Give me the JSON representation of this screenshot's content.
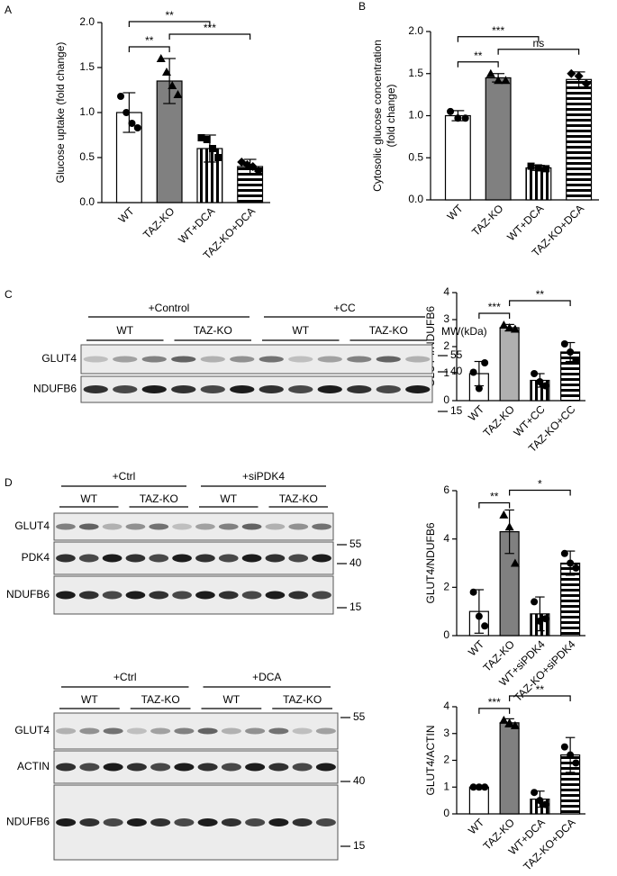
{
  "panel_labels": [
    "A",
    "B",
    "C",
    "D"
  ],
  "chart_data": [
    {
      "type": "bar",
      "ylabel": "Glucose uptake (fold change)",
      "categories": [
        "WT",
        "TAZ-KO",
        "WT+DCA",
        "TAZ-KO+DCA"
      ],
      "values": [
        1.0,
        1.35,
        0.6,
        0.4
      ],
      "errors": [
        0.22,
        0.25,
        0.15,
        0.08
      ],
      "points": [
        [
          1.18,
          1.0,
          0.88,
          0.83
        ],
        [
          1.6,
          1.45,
          1.3,
          1.2
        ],
        [
          0.72,
          0.7,
          0.6,
          0.5
        ],
        [
          0.45,
          0.42,
          0.4,
          0.35
        ]
      ],
      "fills": [
        "#ffffff",
        "#808080",
        "vertical",
        "horizontal"
      ],
      "markers": [
        "circle",
        "triangle",
        "square",
        "diamond"
      ],
      "ylim": [
        0,
        2
      ],
      "yticks": [
        {
          "value": 0,
          "label": "0.0"
        },
        0.5,
        {
          "value": 1,
          "label": "1.0"
        },
        1.5,
        {
          "value": 2,
          "label": "2.0"
        }
      ],
      "annotations": [
        {
          "pair": [
            0,
            1
          ],
          "label": "**"
        },
        {
          "pair": [
            1,
            3
          ],
          "label": "***"
        },
        {
          "pair": [
            0,
            2
          ],
          "label": "**"
        }
      ]
    },
    {
      "type": "bar",
      "ylabel": [
        "Cytosolic glucose concentration",
        "(fold change)"
      ],
      "categories": [
        "WT",
        "TAZ-KO",
        "WT+DCA",
        "TAZ-KO+DCA"
      ],
      "values": [
        1.0,
        1.45,
        0.38,
        1.43
      ],
      "errors": [
        0.06,
        0.05,
        0.03,
        0.09
      ],
      "points": [
        [
          1.05,
          0.97,
          0.97
        ],
        [
          1.5,
          1.42,
          1.42
        ],
        [
          0.4,
          0.38,
          0.37
        ],
        [
          1.5,
          1.47,
          1.38
        ]
      ],
      "fills": [
        "#ffffff",
        "#808080",
        "vertical",
        "horizontal"
      ],
      "markers": [
        "circle",
        "triangle",
        "square",
        "diamond"
      ],
      "ylim": [
        0,
        2
      ],
      "yticks": [
        {
          "value": 0,
          "label": "0.0"
        },
        0.5,
        {
          "value": 1,
          "label": "1.0"
        },
        1.5,
        {
          "value": 2,
          "label": "2.0"
        }
      ],
      "annotations": [
        {
          "pair": [
            0,
            1
          ],
          "label": "**"
        },
        {
          "pair": [
            1,
            3
          ],
          "label": "ns"
        },
        {
          "pair": [
            0,
            2
          ],
          "label": "***"
        }
      ]
    },
    {
      "type": "bar",
      "ylabel": "GLUT4/NDUFB6",
      "categories": [
        "WT",
        "TAZ-KO",
        "WT+CC",
        "TAZ-KO+CC"
      ],
      "values": [
        1.0,
        2.7,
        0.75,
        1.8
      ],
      "errors": [
        0.45,
        0.12,
        0.25,
        0.35
      ],
      "points": [
        [
          1.05,
          0.45,
          1.4
        ],
        [
          2.8,
          2.7,
          2.65
        ],
        [
          1.0,
          0.7,
          0.55
        ],
        [
          2.1,
          1.8,
          1.5
        ]
      ],
      "fills": [
        "#ffffff",
        "#b0b0b0",
        "vertical",
        "horizontal"
      ],
      "markers": [
        "circle",
        "triangle",
        "circle",
        "circle"
      ],
      "ylim": [
        0,
        4
      ],
      "yticks": [
        0,
        1,
        2,
        3,
        4
      ],
      "annotations": [
        {
          "pair": [
            0,
            1
          ],
          "label": "***"
        },
        {
          "pair": [
            1,
            3
          ],
          "label": "**"
        }
      ]
    },
    {
      "type": "bar",
      "ylabel": "GLUT4/NDUFB6",
      "categories": [
        "WT",
        "TAZ-KO",
        "WT+siPDK4",
        "TAZ-KO+siPDK4"
      ],
      "values": [
        1.0,
        4.3,
        0.9,
        3.0
      ],
      "errors": [
        0.9,
        0.9,
        0.7,
        0.5
      ],
      "points": [
        [
          1.8,
          0.8,
          0.4
        ],
        [
          5.0,
          4.5,
          3.0
        ],
        [
          1.4,
          0.6,
          0.7
        ],
        [
          3.4,
          3.0,
          2.8
        ]
      ],
      "fills": [
        "#ffffff",
        "#808080",
        "vertical",
        "horizontal"
      ],
      "markers": [
        "circle",
        "triangle",
        "circle",
        "circle"
      ],
      "ylim": [
        0,
        6
      ],
      "yticks": [
        0,
        2,
        4,
        6
      ],
      "annotations": [
        {
          "pair": [
            0,
            1
          ],
          "label": "**"
        },
        {
          "pair": [
            1,
            3
          ],
          "label": "*"
        }
      ]
    },
    {
      "type": "bar",
      "ylabel": "GLUT4/ACTIN",
      "categories": [
        "WT",
        "TAZ-KO",
        "WT+DCA",
        "TAZ-KO+DCA"
      ],
      "values": [
        1.0,
        3.4,
        0.55,
        2.2
      ],
      "errors": [
        0.02,
        0.15,
        0.3,
        0.65
      ],
      "points": [
        [
          1.0,
          1.0,
          1.0
        ],
        [
          3.5,
          3.4,
          3.3
        ],
        [
          0.8,
          0.5,
          0.35
        ],
        [
          2.5,
          2.2,
          1.9
        ]
      ],
      "fills": [
        "#ffffff",
        "#808080",
        "vertical",
        "horizontal"
      ],
      "markers": [
        "circle",
        "triangle",
        "circle",
        "circle"
      ],
      "ylim": [
        0,
        4
      ],
      "yticks": [
        0,
        1,
        2,
        3,
        4
      ],
      "annotations": [
        {
          "pair": [
            0,
            1
          ],
          "label": "***"
        },
        {
          "pair": [
            1,
            3
          ],
          "label": "**"
        }
      ]
    }
  ],
  "blots": [
    {
      "groups": [
        "+Control",
        "+CC"
      ],
      "lanes": [
        "WT",
        "TAZ-KO",
        "WT",
        "TAZ-KO"
      ],
      "rows": [
        "GLUT4",
        "NDUFB6"
      ],
      "mw_title": "MW(kDa)",
      "mw": [
        55,
        40,
        15
      ]
    },
    {
      "groups": [
        "+Ctrl",
        "+siPDK4"
      ],
      "lanes": [
        "WT",
        "TAZ-KO",
        "WT",
        "TAZ-KO"
      ],
      "rows": [
        "GLUT4",
        "PDK4",
        "NDUFB6"
      ],
      "mw": [
        55,
        40,
        15
      ]
    },
    {
      "groups": [
        "+Ctrl",
        "+DCA"
      ],
      "lanes": [
        "WT",
        "TAZ-KO",
        "WT",
        "TAZ-KO"
      ],
      "rows": [
        "GLUT4",
        "ACTIN",
        "NDUFB6"
      ],
      "mw": [
        55,
        40,
        15
      ]
    }
  ]
}
